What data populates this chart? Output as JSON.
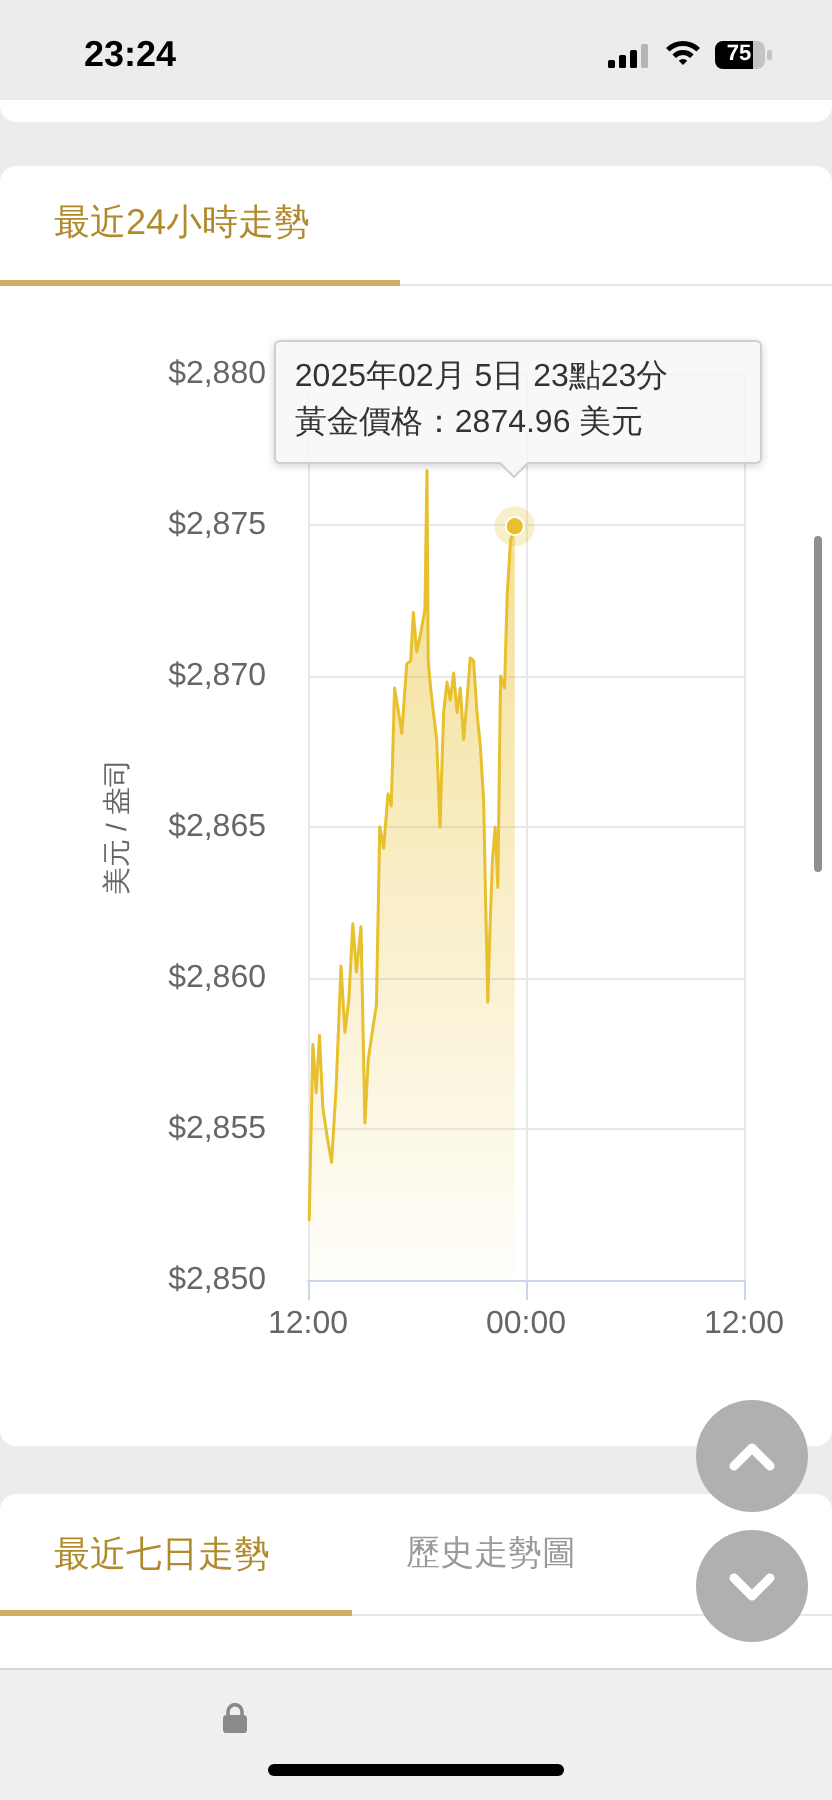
{
  "chart_data": {
    "type": "area",
    "title": "最近24小時走勢",
    "ylabel": "美元 / 盎司",
    "x": [
      "2025-02-05T12:04",
      "2025-02-05T12:16",
      "2025-02-05T12:27",
      "2025-02-05T12:38",
      "2025-02-05T12:49",
      "2025-02-05T13:04",
      "2025-02-05T13:18",
      "2025-02-05T13:33",
      "2025-02-05T13:49",
      "2025-02-05T14:02",
      "2025-02-05T14:15",
      "2025-02-05T14:28",
      "2025-02-05T14:40",
      "2025-02-05T14:55",
      "2025-02-05T15:08",
      "2025-02-05T15:19",
      "2025-02-05T15:35",
      "2025-02-05T15:46",
      "2025-02-05T15:57",
      "2025-02-05T16:10",
      "2025-02-05T16:24",
      "2025-02-05T16:35",
      "2025-02-05T16:46",
      "2025-02-05T16:59",
      "2025-02-05T17:10",
      "2025-02-05T17:26",
      "2025-02-05T17:39",
      "2025-02-05T17:48",
      "2025-02-05T17:59",
      "2025-02-05T18:12",
      "2025-02-05T18:26",
      "2025-02-05T18:33",
      "2025-02-05T18:37",
      "2025-02-05T18:45",
      "2025-02-05T18:54",
      "2025-02-05T19:05",
      "2025-02-05T19:16",
      "2025-02-05T19:28",
      "2025-02-05T19:39",
      "2025-02-05T19:50",
      "2025-02-05T20:01",
      "2025-02-05T20:12",
      "2025-02-05T20:23",
      "2025-02-05T20:34",
      "2025-02-05T20:45",
      "2025-02-05T20:56",
      "2025-02-05T21:07",
      "2025-02-05T21:18",
      "2025-02-05T21:29",
      "2025-02-05T21:40",
      "2025-02-05T21:47",
      "2025-02-05T21:54",
      "2025-02-05T22:00",
      "2025-02-05T22:09",
      "2025-02-05T22:18",
      "2025-02-05T22:27",
      "2025-02-05T22:36",
      "2025-02-05T22:49",
      "2025-02-05T22:58",
      "2025-02-05T23:09",
      "2025-02-05T23:16",
      "2025-02-05T23:23"
    ],
    "series": [
      {
        "color": "#e8bf2c",
        "values": [
          2852.0,
          2857.8,
          2856.2,
          2858.1,
          2855.7,
          2854.7,
          2853.9,
          2856.4,
          2860.4,
          2858.2,
          2859.3,
          2861.8,
          2860.2,
          2861.7,
          2855.2,
          2857.3,
          2858.4,
          2859.1,
          2865.0,
          2864.3,
          2866.1,
          2865.7,
          2869.6,
          2868.8,
          2868.1,
          2870.4,
          2870.5,
          2872.1,
          2870.8,
          2871.4,
          2872.2,
          2876.8,
          2870.5,
          2869.6,
          2868.8,
          2867.9,
          2865.0,
          2868.8,
          2869.8,
          2869.2,
          2870.1,
          2868.8,
          2869.6,
          2867.9,
          2869.2,
          2870.6,
          2870.5,
          2868.8,
          2867.7,
          2865.9,
          2862.4,
          2859.2,
          2861.3,
          2863.9,
          2865.0,
          2863.0,
          2870.0,
          2869.6,
          2872.7,
          2874.5,
          2874.7,
          2874.96
        ]
      }
    ],
    "xlim": [
      "2025-02-05T12:00",
      "2025-02-06T12:00"
    ],
    "xticks": [
      {
        "value": "2025-02-05T12:00",
        "label": "12:00"
      },
      {
        "value": "2025-02-06T00:00",
        "label": "00:00"
      },
      {
        "value": "2025-02-06T12:00",
        "label": "12:00"
      }
    ],
    "ylim": [
      2850,
      2880
    ],
    "yticks": [
      {
        "value": 2850,
        "label": "$2,850"
      },
      {
        "value": 2855,
        "label": "$2,855"
      },
      {
        "value": 2860,
        "label": "$2,860"
      },
      {
        "value": 2865,
        "label": "$2,865"
      },
      {
        "value": 2870,
        "label": "$2,870"
      },
      {
        "value": 2875,
        "label": "$2,875"
      },
      {
        "value": 2880,
        "label": "$2,880"
      }
    ],
    "grid": true,
    "marker": "none",
    "annotations": [
      "2025年02月 5日 23點23分",
      {
        "text": "黃金價格：2874.96 美元",
        "x": "2025-02-05T23:23",
        "y": 2874.96
      },
      "23:24",
      "75",
      "最近七日走勢",
      "歷史走勢圖"
    ]
  }
}
